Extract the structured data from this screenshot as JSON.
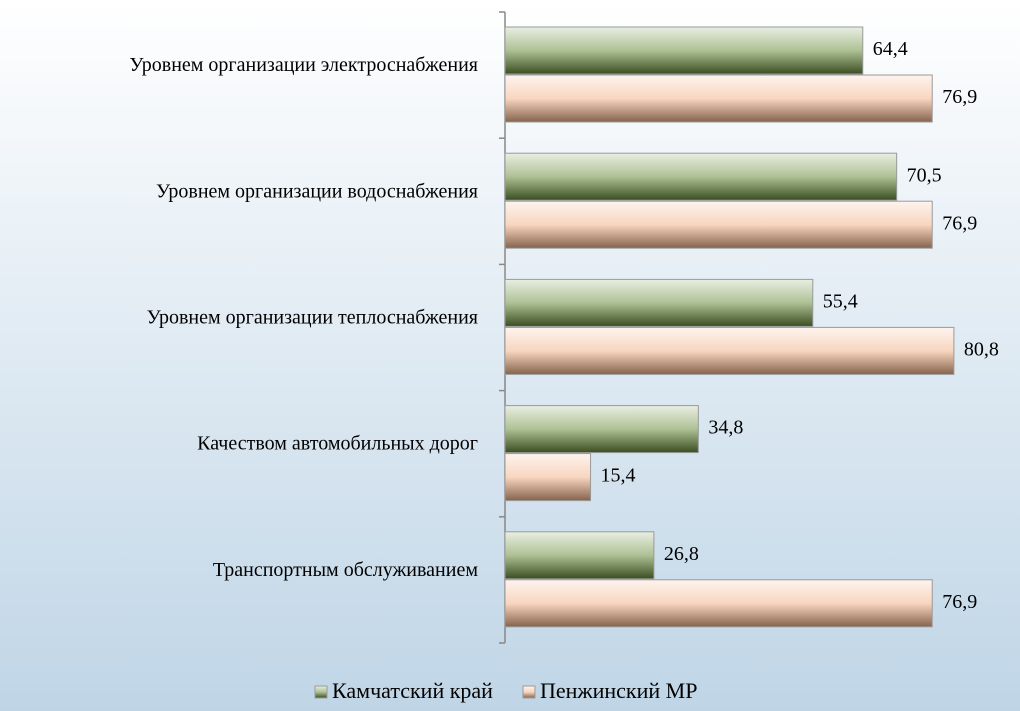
{
  "chart_data": {
    "type": "bar",
    "orientation": "horizontal",
    "categories": [
      "Уровнем организации электроснабжения",
      "Уровнем организации водоснабжения",
      "Уровнем организации теплоснабжения",
      "Качеством автомобильных дорог",
      "Транспортным обслуживанием"
    ],
    "series": [
      {
        "name": "Камчатский край",
        "color": "#6b8e3e",
        "values": [
          64.4,
          70.5,
          55.4,
          34.8,
          26.8
        ],
        "value_labels": [
          "64,4",
          "70,5",
          "55,4",
          "34,8",
          "26,8"
        ]
      },
      {
        "name": "Пенжинский МР",
        "color": "#f2b48c",
        "values": [
          76.9,
          76.9,
          80.8,
          15.4,
          76.9
        ],
        "value_labels": [
          "76,9",
          "76,9",
          "80,8",
          "15,4",
          "76,9"
        ]
      }
    ],
    "xlim": [
      0,
      90
    ],
    "legend": "bottom"
  }
}
